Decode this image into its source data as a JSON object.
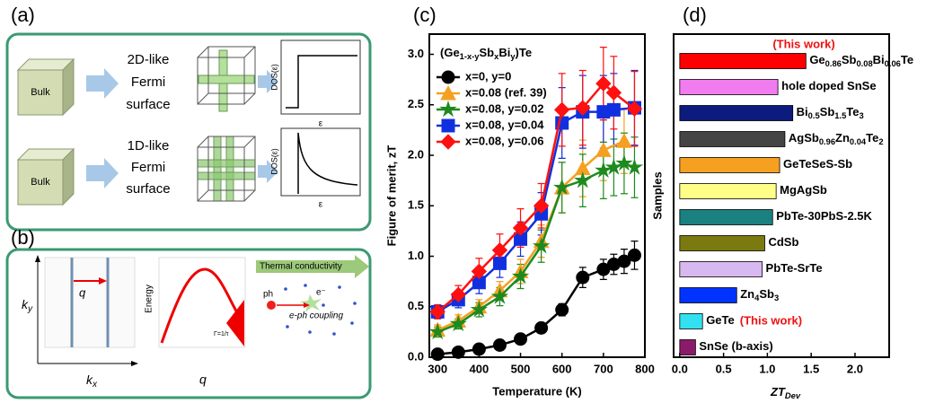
{
  "schematic_a": {
    "label": "(a)",
    "rows": [
      {
        "bulk": "Bulk",
        "fermi": [
          "2D-like",
          "Fermi",
          "surface"
        ],
        "dos": "DOS(ε)",
        "energy": "ε"
      },
      {
        "bulk": "Bulk",
        "fermi": [
          "1D-like",
          "Fermi",
          "surface"
        ],
        "dos": "DOS(ε)",
        "energy": "ε"
      }
    ]
  },
  "schematic_b": {
    "label": "(b)",
    "ky": [
      "k",
      "y"
    ],
    "kx": [
      "k",
      "x"
    ],
    "q1": "q",
    "energy": "Energy",
    "q2": "q",
    "gamma": "Γ=1/τ",
    "thermal": "Thermal conductivity",
    "ph": "ph",
    "e": "e⁻",
    "coupling": "e-ph coupling"
  },
  "chart_data": [
    {
      "type": "line",
      "panel_label": "(c)",
      "title": [
        "(Ge",
        "1-x-y",
        "Sb",
        "x",
        "Bi",
        "y",
        ")Te"
      ],
      "xlabel": "Temperature (K)",
      "ylabel": "Figure of merit, zT",
      "xlim": [
        280,
        800
      ],
      "ylim": [
        0,
        3.2
      ],
      "xticks": [
        300,
        400,
        500,
        600,
        700,
        800
      ],
      "yticks": [
        {
          "value": 0,
          "label": "0.0"
        },
        {
          "value": 0.5,
          "label": "0.5"
        },
        {
          "value": 1,
          "label": "1.0"
        },
        {
          "value": 1.5,
          "label": "1.5"
        },
        {
          "value": 2,
          "label": "2.0"
        },
        {
          "value": 2.5,
          "label": "2.5"
        },
        {
          "value": 3,
          "label": "3.0"
        }
      ],
      "series": [
        {
          "name": "x=0, y=0",
          "color": "#000000",
          "marker": "circle",
          "x": [
            300,
            350,
            400,
            450,
            500,
            550,
            600,
            650,
            700,
            725,
            750,
            775
          ],
          "values": [
            0.03,
            0.05,
            0.08,
            0.12,
            0.18,
            0.29,
            0.47,
            0.79,
            0.87,
            0.92,
            0.95,
            1.01
          ],
          "errors": [
            0.02,
            0.02,
            0.02,
            0.03,
            0.03,
            0.04,
            0.06,
            0.1,
            0.1,
            0.1,
            0.12,
            0.14
          ]
        },
        {
          "name": "x=0.08  (ref. 39)",
          "color": "#f5a020",
          "marker": "triangle",
          "x": [
            300,
            350,
            400,
            450,
            500,
            550,
            600,
            650,
            700,
            750
          ],
          "values": [
            0.27,
            0.36,
            0.5,
            0.66,
            0.85,
            1.15,
            1.68,
            1.87,
            2.05,
            2.14
          ],
          "errors": [
            0.05,
            0.06,
            0.07,
            0.09,
            0.12,
            0.16,
            0.25,
            0.28,
            0.3,
            0.32
          ]
        },
        {
          "name": "x=0.08, y=0.02",
          "color": "#1e8a1e",
          "marker": "star",
          "x": [
            300,
            350,
            400,
            450,
            500,
            550,
            600,
            650,
            700,
            725,
            750,
            775
          ],
          "values": [
            0.25,
            0.33,
            0.47,
            0.6,
            0.8,
            1.1,
            1.68,
            1.75,
            1.85,
            1.88,
            1.92,
            1.88
          ],
          "errors": [
            0.05,
            0.05,
            0.07,
            0.09,
            0.12,
            0.16,
            0.25,
            0.26,
            0.28,
            0.28,
            0.3,
            0.3
          ]
        },
        {
          "name": "x=0.08, y=0.04",
          "color": "#1030e0",
          "marker": "square",
          "x": [
            300,
            350,
            400,
            450,
            500,
            550,
            600,
            650,
            700,
            725,
            775
          ],
          "values": [
            0.45,
            0.57,
            0.74,
            0.93,
            1.17,
            1.42,
            2.32,
            2.43,
            2.43,
            2.45,
            2.47
          ],
          "errors": [
            0.06,
            0.08,
            0.11,
            0.14,
            0.17,
            0.21,
            0.35,
            0.36,
            0.36,
            0.36,
            0.37
          ]
        },
        {
          "name": "x=0.08, y=0.06",
          "color": "#ff1010",
          "marker": "diamond",
          "x": [
            300,
            350,
            400,
            450,
            500,
            550,
            600,
            650,
            700,
            725,
            775
          ],
          "values": [
            0.45,
            0.62,
            0.85,
            1.06,
            1.28,
            1.5,
            2.45,
            2.47,
            2.71,
            2.62,
            2.46
          ],
          "errors": [
            0.07,
            0.09,
            0.13,
            0.16,
            0.19,
            0.22,
            0.36,
            0.37,
            0.36,
            0.36,
            0.37
          ]
        }
      ]
    },
    {
      "type": "barh",
      "panel_label": "(d)",
      "xlabel": [
        "ZT",
        "Dev"
      ],
      "ylabel": "Samples",
      "xlim": [
        -0.07,
        2.39
      ],
      "xticks": [
        {
          "value": 0,
          "label": "0.0"
        },
        {
          "value": 0.5,
          "label": "0.5"
        },
        {
          "value": 1,
          "label": "1.0"
        },
        {
          "value": 1.5,
          "label": "1.5"
        },
        {
          "value": 2,
          "label": "2.0"
        }
      ],
      "categories": [
        [
          "Ge",
          "0.86",
          "Sb",
          "0.08",
          "Bi",
          "0.06",
          "Te"
        ],
        [
          "hole doped SnSe"
        ],
        [
          "Bi",
          "0.5",
          "Sb",
          "1.5",
          "Te",
          "3"
        ],
        [
          "AgSb",
          "0.96",
          "Zn",
          "0.04",
          "Te",
          "2"
        ],
        [
          "GeTeSeS-Sb"
        ],
        [
          "MgAgSb"
        ],
        [
          "PbTe-30PbS-2.5K"
        ],
        [
          "CdSb"
        ],
        [
          "PbTe-SrTe"
        ],
        [
          "Zn",
          "4",
          "Sb",
          "3"
        ],
        [
          "GeTe"
        ],
        [
          "SnSe (b-axis)"
        ]
      ],
      "values": [
        1.44,
        1.12,
        1.29,
        1.2,
        1.14,
        1.1,
        1.06,
        0.97,
        0.94,
        0.65,
        0.26,
        0.18
      ],
      "colors": [
        "#ff0000",
        "#f07cf0",
        "#0d1b7e",
        "#444444",
        "#f5a020",
        "#ffff88",
        "#1a8080",
        "#7a7a10",
        "#d8b8f0",
        "#0033ff",
        "#33e0f0",
        "#8b1a6b"
      ],
      "annotations": [
        "(This work)",
        "(This work)"
      ],
      "annotation_color": "#ee1111"
    }
  ]
}
